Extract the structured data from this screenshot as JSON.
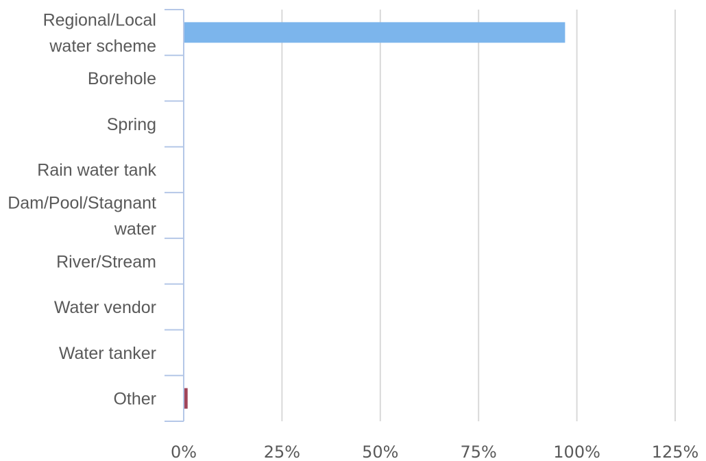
{
  "chart_data": {
    "type": "bar",
    "orientation": "horizontal",
    "categories": [
      "Regional/Local water scheme",
      "Borehole",
      "Spring",
      "Rain water tank",
      "Dam/Pool/Stagnant water",
      "River/Stream",
      "Water vendor",
      "Water tanker",
      "Other"
    ],
    "series": [
      {
        "values": [
          97,
          0,
          0,
          0,
          0,
          0,
          0,
          0,
          1
        ]
      }
    ],
    "bar_colors": [
      "#7cb5ec",
      "#7cb5ec",
      "#7cb5ec",
      "#7cb5ec",
      "#7cb5ec",
      "#7cb5ec",
      "#7cb5ec",
      "#7cb5ec",
      "#a0455a"
    ],
    "title": "",
    "xlabel": "",
    "ylabel": "",
    "xlim": [
      0,
      125
    ],
    "x_ticks": [
      "0%",
      "25%",
      "50%",
      "75%",
      "100%",
      "125%"
    ],
    "grid": true,
    "legend": "none"
  }
}
